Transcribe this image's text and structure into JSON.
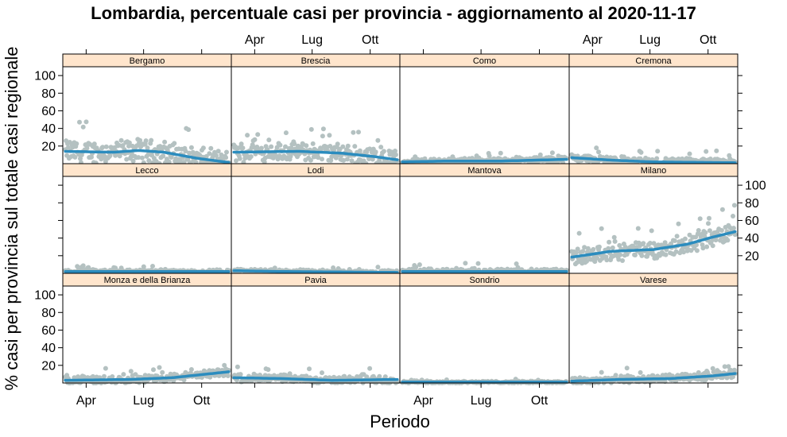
{
  "chart_data": {
    "type": "scatter",
    "title": "Lombardia, percentuale casi per provincia - aggiornamento al 2020-11-17",
    "xlabel": "Periodo",
    "ylabel": "% casi per provincia sul totale casi regionale",
    "x_range": [
      "2020-02-24",
      "2020-11-17"
    ],
    "ylim": [
      0,
      110
    ],
    "x_ticks": [
      {
        "label": "Apr",
        "date": "2020-04-01"
      },
      {
        "label": "Lug",
        "date": "2020-07-01"
      },
      {
        "label": "Ott",
        "date": "2020-10-01"
      }
    ],
    "y_ticks": [
      20,
      40,
      60,
      80,
      100
    ],
    "colors": {
      "points": "#b4c1c1",
      "smooth": "#2b8cbe",
      "strip": "#ffe5cc"
    },
    "panels": [
      {
        "name": "Bergamo",
        "level": 13,
        "spread": 11,
        "trend": [
          [
            0,
            14
          ],
          [
            0.3,
            13
          ],
          [
            0.45,
            15
          ],
          [
            0.6,
            13
          ],
          [
            0.8,
            6
          ],
          [
            1,
            1
          ]
        ]
      },
      {
        "name": "Brescia",
        "level": 13,
        "spread": 9,
        "trend": [
          [
            0,
            13
          ],
          [
            0.4,
            14
          ],
          [
            0.65,
            12
          ],
          [
            0.85,
            8
          ],
          [
            1,
            4
          ]
        ]
      },
      {
        "name": "Como",
        "level": 3,
        "spread": 3,
        "trend": [
          [
            0,
            2
          ],
          [
            0.3,
            3
          ],
          [
            0.6,
            3
          ],
          [
            1,
            5
          ]
        ]
      },
      {
        "name": "Cremona",
        "level": 3,
        "spread": 4,
        "trend": [
          [
            0,
            7
          ],
          [
            0.25,
            4
          ],
          [
            0.5,
            2
          ],
          [
            1,
            1
          ]
        ]
      },
      {
        "name": "Lecco",
        "level": 2,
        "spread": 2,
        "trend": [
          [
            0,
            2
          ],
          [
            0.5,
            2
          ],
          [
            1,
            2
          ]
        ]
      },
      {
        "name": "Lodi",
        "level": 2,
        "spread": 2,
        "trend": [
          [
            0,
            3
          ],
          [
            0.3,
            2
          ],
          [
            1,
            1
          ]
        ]
      },
      {
        "name": "Mantova",
        "level": 2,
        "spread": 3,
        "trend": [
          [
            0,
            2
          ],
          [
            0.5,
            2
          ],
          [
            1,
            2
          ]
        ]
      },
      {
        "name": "Milano",
        "level": 30,
        "spread": 9,
        "trend": [
          [
            0,
            18
          ],
          [
            0.25,
            25
          ],
          [
            0.5,
            27
          ],
          [
            0.7,
            33
          ],
          [
            0.85,
            41
          ],
          [
            1,
            48
          ]
        ]
      },
      {
        "name": "Monza e della Brianza",
        "level": 6,
        "spread": 4,
        "trend": [
          [
            0,
            3
          ],
          [
            0.4,
            4
          ],
          [
            0.65,
            6
          ],
          [
            0.85,
            10
          ],
          [
            1,
            13
          ]
        ]
      },
      {
        "name": "Pavia",
        "level": 5,
        "spread": 4,
        "trend": [
          [
            0,
            6
          ],
          [
            0.3,
            5
          ],
          [
            0.6,
            3
          ],
          [
            1,
            4
          ]
        ]
      },
      {
        "name": "Sondrio",
        "level": 1,
        "spread": 1,
        "trend": [
          [
            0,
            1
          ],
          [
            0.5,
            1
          ],
          [
            1,
            1
          ]
        ]
      },
      {
        "name": "Varese",
        "level": 5,
        "spread": 4,
        "trend": [
          [
            0,
            2
          ],
          [
            0.3,
            4
          ],
          [
            0.6,
            5
          ],
          [
            0.85,
            8
          ],
          [
            1,
            11
          ]
        ]
      }
    ]
  }
}
